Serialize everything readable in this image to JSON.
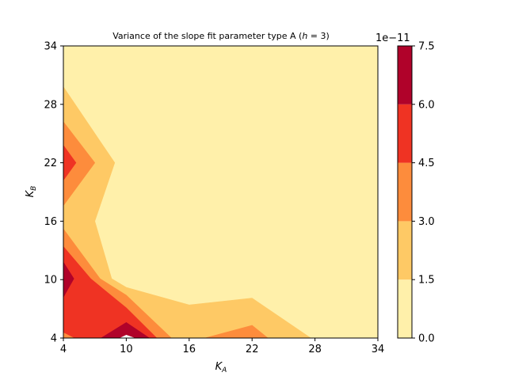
{
  "chart_data": {
    "type": "heatmap",
    "subtype": "filled-contour",
    "title_parts": [
      "Variance of the slope fit parameter type A (",
      "h",
      " = 3)"
    ],
    "xlabel": {
      "base": "K",
      "sub": "A"
    },
    "ylabel": {
      "base": "K",
      "sub": "B"
    },
    "x_ticks": [
      4,
      10,
      16,
      22,
      28,
      34
    ],
    "y_ticks": [
      4,
      10,
      16,
      22,
      28,
      34
    ],
    "xlim": [
      4,
      34
    ],
    "ylim": [
      4,
      34
    ],
    "grid": false,
    "colorbar": {
      "position": "right",
      "ticks": [
        "0.0",
        "1.5",
        "3.0",
        "4.5",
        "6.0",
        "7.5"
      ],
      "exponent_label": "1e−11",
      "levels": [
        0.0,
        1.5,
        3.0,
        4.5,
        6.0,
        7.5
      ],
      "colors": [
        "#fff0aa",
        "#fec965",
        "#fd8c3c",
        "#ef3323",
        "#b0022a"
      ]
    },
    "regions": [
      {
        "level_index": 1,
        "label": "1.5-3.0",
        "points": [
          [
            4,
            4
          ],
          [
            27.6,
            4
          ],
          [
            22,
            8.1
          ],
          [
            16,
            7.4
          ],
          [
            10,
            9.2
          ],
          [
            8.6,
            10.1
          ],
          [
            7,
            16
          ],
          [
            8.9,
            22
          ],
          [
            4,
            29.8
          ]
        ]
      },
      {
        "level_index": 2,
        "label": "3.0-4.5",
        "points": [
          [
            4,
            4
          ],
          [
            23.5,
            4
          ],
          [
            22,
            5.3
          ],
          [
            17.5,
            4
          ],
          [
            14.3,
            4
          ],
          [
            10,
            8.4
          ],
          [
            7.5,
            10.1
          ],
          [
            4,
            15.2
          ]
        ]
      },
      {
        "level_index": 2,
        "label": "3.0-4.5",
        "points": [
          [
            4,
            17.6
          ],
          [
            7,
            22
          ],
          [
            4,
            26.2
          ]
        ]
      },
      {
        "level_index": 3,
        "label": "4.5-6.0",
        "points": [
          [
            4,
            4.6
          ],
          [
            5.1,
            4
          ],
          [
            12.9,
            4
          ],
          [
            10,
            7.1
          ],
          [
            6.6,
            10.1
          ],
          [
            4,
            13.4
          ]
        ]
      },
      {
        "level_index": 3,
        "label": "4.5-6.0",
        "points": [
          [
            4,
            20.2
          ],
          [
            5.2,
            22
          ],
          [
            4,
            23.8
          ]
        ]
      },
      {
        "level_index": 4,
        "label": "6.0-7.5",
        "points": [
          [
            4,
            8.2
          ],
          [
            5,
            10.1
          ],
          [
            4,
            11.8
          ]
        ]
      },
      {
        "level_index": 4,
        "label": "6.0-7.5",
        "points": [
          [
            7.6,
            4
          ],
          [
            10,
            5.6
          ],
          [
            12.2,
            4
          ]
        ]
      },
      {
        "level_index": -1,
        "label": ">7.5",
        "points": [
          [
            9.4,
            4
          ],
          [
            10,
            4.3
          ],
          [
            10.8,
            4
          ]
        ]
      }
    ]
  }
}
